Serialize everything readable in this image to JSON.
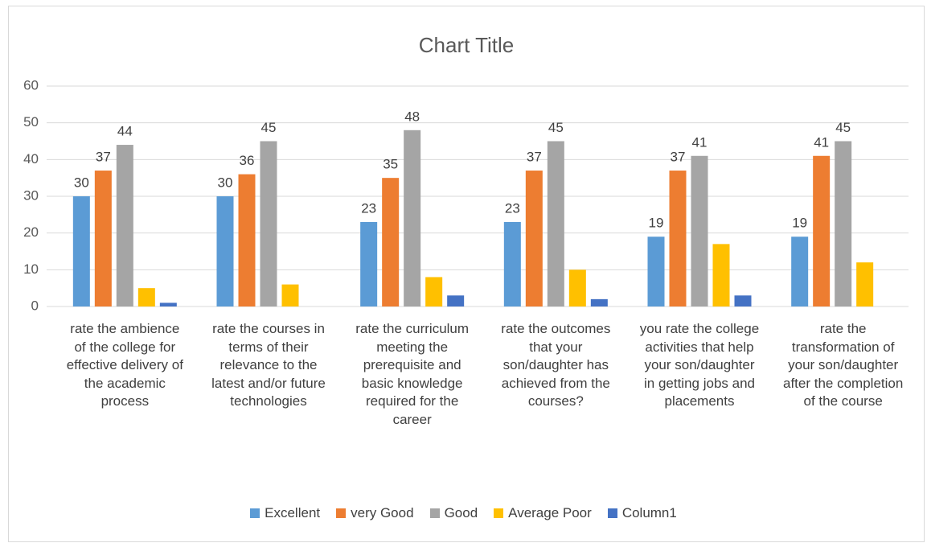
{
  "chart_data": {
    "type": "bar",
    "title": "Chart Title",
    "categories": [
      "rate the ambience of the college for effective delivery of the academic process",
      "rate the courses in terms of their relevance to the latest and/or future technologies",
      "rate the curriculum meeting the prerequisite and basic knowledge required for the career",
      "rate the outcomes that your son/daughter has achieved from the courses?",
      "you rate the college activities that help your son/daughter in getting jobs and placements",
      "rate the transformation of your son/daughter after the completion of the course"
    ],
    "series": [
      {
        "name": "Excellent",
        "color": "#5b9bd5",
        "values": [
          30,
          30,
          23,
          23,
          19,
          19
        ],
        "data_labels": true
      },
      {
        "name": "very Good",
        "color": "#ed7d31",
        "values": [
          37,
          36,
          35,
          37,
          37,
          41
        ],
        "data_labels": true
      },
      {
        "name": "Good",
        "color": "#a5a5a5",
        "values": [
          44,
          45,
          48,
          45,
          41,
          45
        ],
        "data_labels": true
      },
      {
        "name": "Average Poor",
        "color": "#ffc000",
        "values": [
          5,
          6,
          8,
          10,
          17,
          12
        ],
        "data_labels": false
      },
      {
        "name": "Column1",
        "color": "#4472c4",
        "values": [
          1,
          0,
          3,
          2,
          3,
          0
        ],
        "data_labels": false
      }
    ],
    "ylim": [
      0,
      60
    ],
    "yticks": [
      0,
      10,
      20,
      30,
      40,
      50,
      60
    ],
    "grid": true,
    "legend": "bottom"
  }
}
